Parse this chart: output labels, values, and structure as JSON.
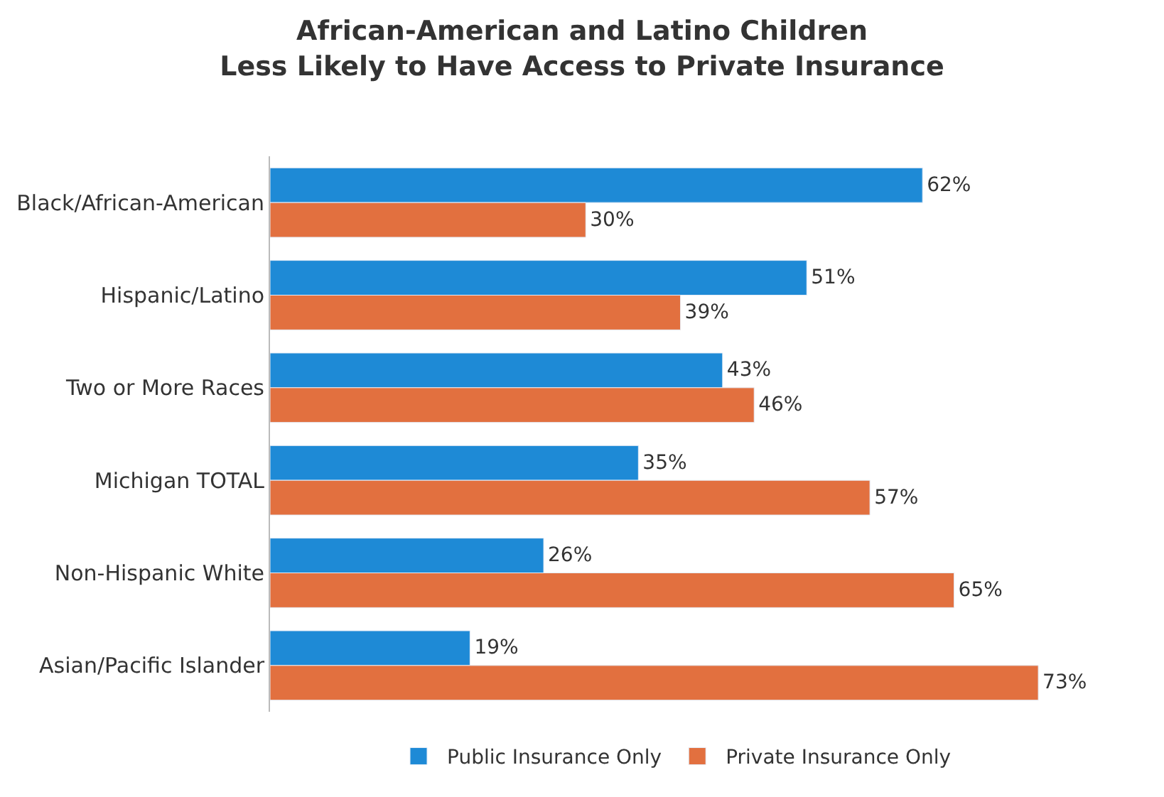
{
  "chart_data": {
    "type": "bar",
    "orientation": "horizontal",
    "title": "African-American and Latino Children\nLess Likely to Have Access to Private Insurance",
    "categories": [
      "Black/African-American",
      "Hispanic/Latino",
      "Two or More Races",
      "Michigan TOTAL",
      "Non-Hispanic White",
      "Asian/Pacific Islander"
    ],
    "series": [
      {
        "name": "Public Insurance Only",
        "color": "#1e8ad6",
        "values": [
          62,
          51,
          43,
          35,
          26,
          19
        ],
        "value_labels": [
          "62%",
          "51%",
          "43%",
          "35%",
          "26%",
          "19%"
        ]
      },
      {
        "name": "Private Insurance Only",
        "color": "#e2703f",
        "values": [
          30,
          39,
          46,
          57,
          65,
          73
        ],
        "value_labels": [
          "30%",
          "39%",
          "46%",
          "57%",
          "65%",
          "73%"
        ]
      }
    ],
    "legend": "bottom"
  }
}
